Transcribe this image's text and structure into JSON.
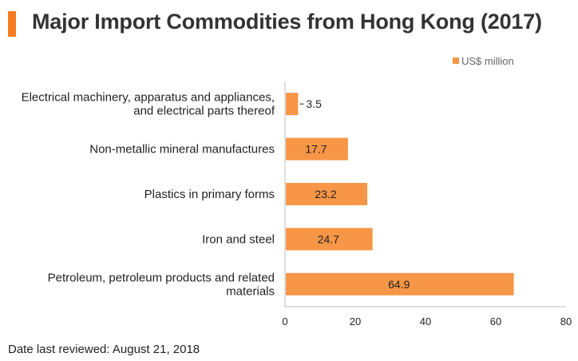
{
  "header": {
    "title": "Major Import Commodities from Hong Kong (2017)",
    "accent_color": "#f47c20"
  },
  "footer": {
    "note": "Date last reviewed: August 21, 2018"
  },
  "chart_data": {
    "type": "bar",
    "orientation": "horizontal",
    "categories": [
      [
        "Electrical machinery, apparatus and appliances,",
        "and electrical parts thereof"
      ],
      [
        "Non-metallic mineral manufactures"
      ],
      [
        "Plastics in primary forms"
      ],
      [
        "Iron and steel"
      ],
      [
        "Petroleum, petroleum products and related",
        "materials"
      ]
    ],
    "series": [
      {
        "name": "US$ million",
        "values": [
          3.5,
          17.7,
          23.2,
          24.7,
          64.9
        ],
        "color": "#f79646"
      }
    ],
    "value_labels": [
      "3.5",
      "17.7",
      "23.2",
      "24.7",
      "64.9"
    ],
    "xlim": [
      0,
      80
    ],
    "xticks": [
      0,
      20,
      40,
      60,
      80
    ],
    "grid": false,
    "legend": "top-right"
  }
}
